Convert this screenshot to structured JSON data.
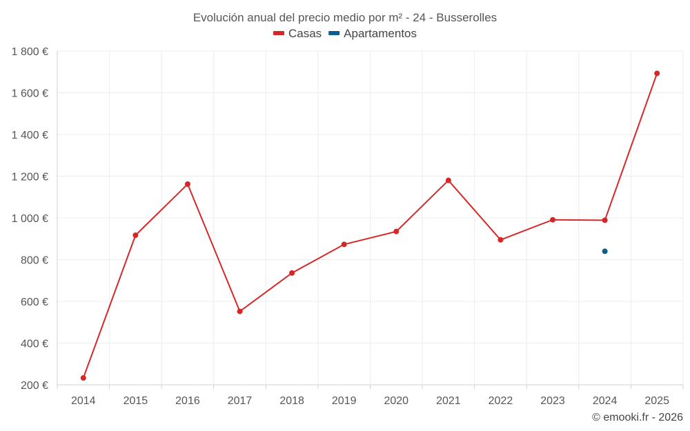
{
  "chart_data": {
    "type": "line",
    "title": "Evolución anual del precio medio por m² - 24 - Busserolles",
    "categories": [
      "2014",
      "2015",
      "2016",
      "2017",
      "2018",
      "2019",
      "2020",
      "2021",
      "2022",
      "2023",
      "2024",
      "2025"
    ],
    "series": [
      {
        "name": "Casas",
        "color": "#d62728",
        "values": [
          233,
          917,
          1162,
          552,
          736,
          873,
          935,
          1180,
          895,
          991,
          989,
          1693
        ]
      },
      {
        "name": "Apartamentos",
        "color": "#0b5f8f",
        "values": [
          null,
          null,
          null,
          null,
          null,
          null,
          null,
          null,
          null,
          null,
          840,
          null
        ]
      }
    ],
    "ylim": [
      200,
      1800
    ],
    "yticks": [
      200,
      400,
      600,
      800,
      1000,
      1200,
      1400,
      1600,
      1800
    ],
    "ytick_labels": [
      "200 €",
      "400 €",
      "600 €",
      "800 €",
      "1 000 €",
      "1 200 €",
      "1 400 €",
      "1 600 €",
      "1 800 €"
    ],
    "xlabel": "",
    "ylabel": "",
    "grid": true,
    "legend_position": "top-center"
  },
  "credit": "© emooki.fr - 2026"
}
